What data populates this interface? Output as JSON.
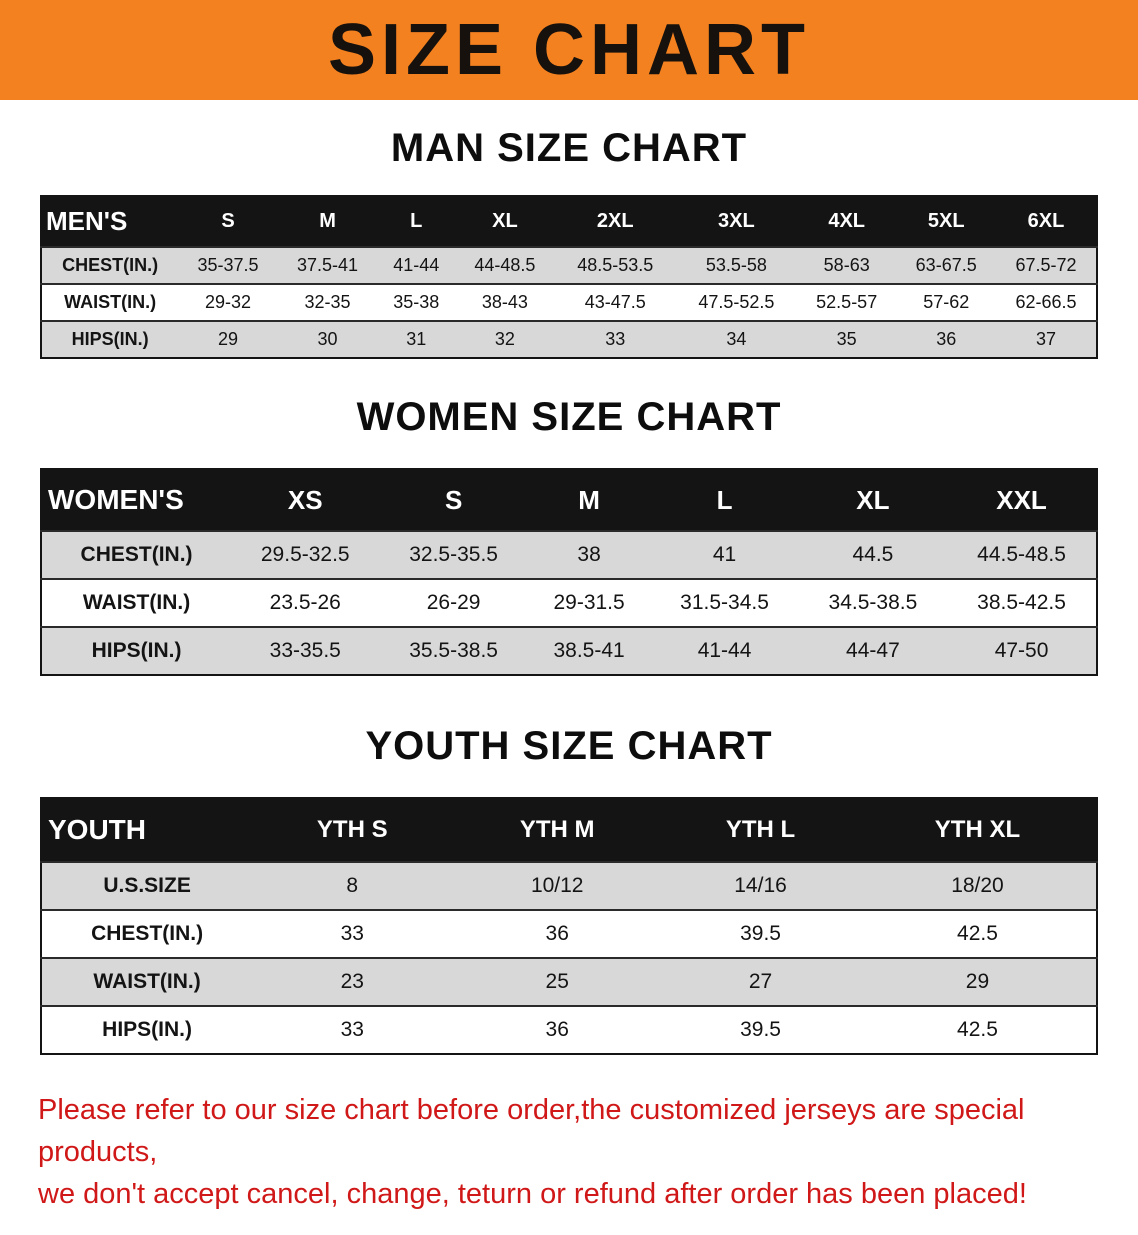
{
  "theme": {
    "banner_bg": "#f48120",
    "table_header_bg": "#141414",
    "row_alt_bg": "#d8d8d8",
    "disclaimer_color": "#d01818"
  },
  "banner": {
    "title": "SIZE CHART"
  },
  "sections": [
    {
      "id": "men",
      "heading": "MAN SIZE CHART",
      "table": {
        "header": [
          "MEN'S",
          "S",
          "M",
          "L",
          "XL",
          "2XL",
          "3XL",
          "4XL",
          "5XL",
          "6XL"
        ],
        "rows": [
          [
            "CHEST(IN.)",
            "35-37.5",
            "37.5-41",
            "41-44",
            "44-48.5",
            "48.5-53.5",
            "53.5-58",
            "58-63",
            "63-67.5",
            "67.5-72"
          ],
          [
            "WAIST(IN.)",
            "29-32",
            "32-35",
            "35-38",
            "38-43",
            "43-47.5",
            "47.5-52.5",
            "52.5-57",
            "57-62",
            "62-66.5"
          ],
          [
            "HIPS(IN.)",
            "29",
            "30",
            "31",
            "32",
            "33",
            "34",
            "35",
            "36",
            "37"
          ]
        ]
      }
    },
    {
      "id": "women",
      "heading": "WOMEN SIZE CHART",
      "table": {
        "header": [
          "WOMEN'S",
          "XS",
          "S",
          "M",
          "L",
          "XL",
          "XXL"
        ],
        "rows": [
          [
            "CHEST(IN.)",
            "29.5-32.5",
            "32.5-35.5",
            "38",
            "41",
            "44.5",
            "44.5-48.5"
          ],
          [
            "WAIST(IN.)",
            "23.5-26",
            "26-29",
            "29-31.5",
            "31.5-34.5",
            "34.5-38.5",
            "38.5-42.5"
          ],
          [
            "HIPS(IN.)",
            "33-35.5",
            "35.5-38.5",
            "38.5-41",
            "41-44",
            "44-47",
            "47-50"
          ]
        ]
      }
    },
    {
      "id": "youth",
      "heading": "YOUTH SIZE CHART",
      "table": {
        "header": [
          "YOUTH",
          "YTH S",
          "YTH M",
          "YTH L",
          "YTH XL"
        ],
        "rows": [
          [
            "U.S.SIZE",
            "8",
            "10/12",
            "14/16",
            "18/20"
          ],
          [
            "CHEST(IN.)",
            "33",
            "36",
            "39.5",
            "42.5"
          ],
          [
            "WAIST(IN.)",
            "23",
            "25",
            "27",
            "29"
          ],
          [
            "HIPS(IN.)",
            "33",
            "36",
            "39.5",
            "42.5"
          ]
        ]
      }
    }
  ],
  "disclaimer": {
    "lines": [
      "Please refer to our size chart before order,the customized jerseys are special products,",
      "we don't accept cancel, change, teturn or refund after order has been placed!"
    ]
  }
}
